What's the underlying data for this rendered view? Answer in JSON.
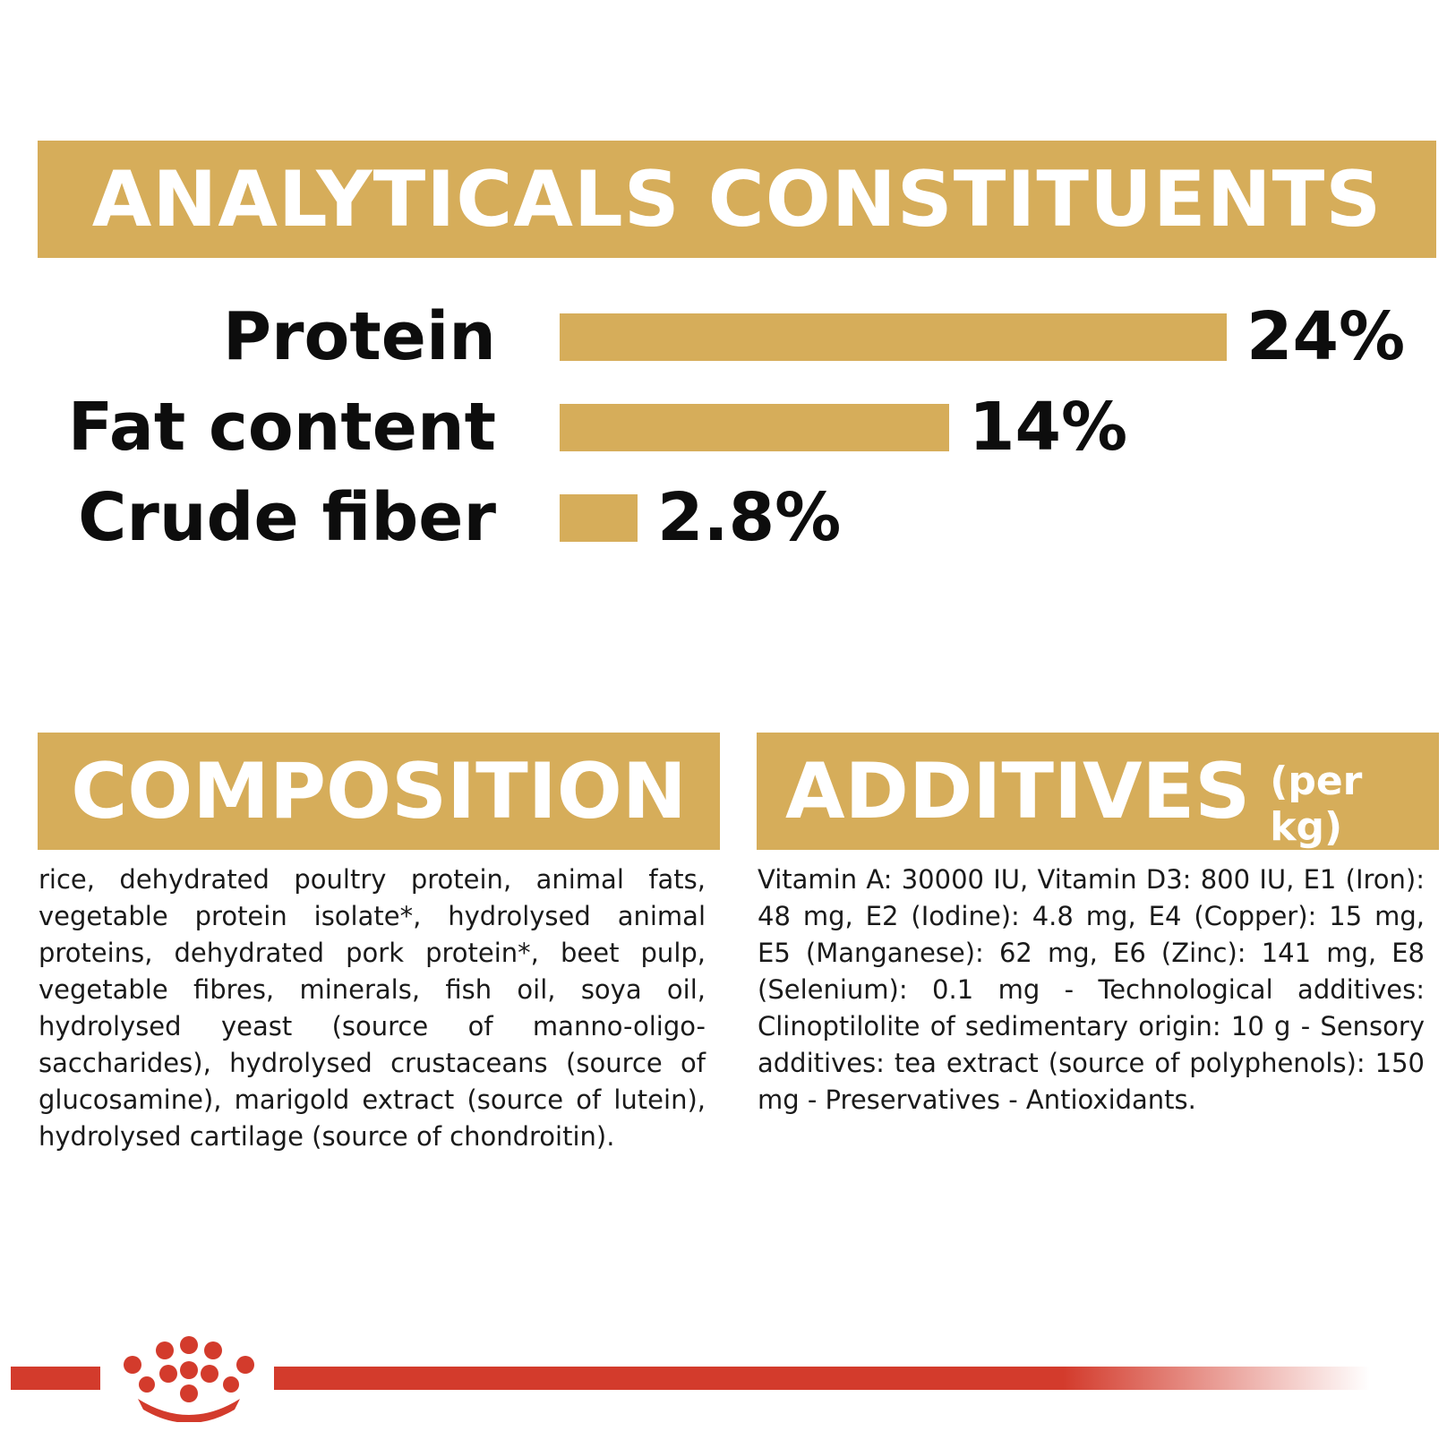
{
  "analytical": {
    "title": "ANALYTICALS CONSTITUENTS",
    "rows": [
      {
        "label": "Protein",
        "value": "24%",
        "percent": 24
      },
      {
        "label": "Fat content",
        "value": "14%",
        "percent": 14
      },
      {
        "label": "Crude fiber",
        "value": "2.8%",
        "percent": 2.8
      }
    ]
  },
  "composition": {
    "title": "COMPOSITION",
    "text": "rice, dehydrated poultry protein, animal fats, vegetable protein isolate*, hydrolysed animal proteins, dehydrated pork protein*, beet pulp, vegetable fibres, minerals, fish oil, soya oil, hydrolysed yeast (source of manno-oligo-saccharides), hydrolysed crustaceans (source of glucosamine), marigold extract (source of lutein), hydrolysed cartilage (source of chondroitin)."
  },
  "additives": {
    "title": "ADDITIVES",
    "subtitle": "(per kg)",
    "text": "Vitamin A: 30000 IU, Vitamin D3: 800 IU, E1 (Iron): 48 mg, E2 (Iodine): 4.8 mg, E4 (Copper): 15 mg, E5 (Manganese): 62 mg, E6 (Zinc): 141 mg, E8 (Selenium): 0.1 mg - Technological additives: Clinoptilolite of sedimentary origin: 10 g - Sensory additives: tea extract (source of polyphenols): 150 mg - Preservatives - Antioxidants."
  },
  "colors": {
    "accent": "#d6ad5a",
    "brand_red": "#d33b2c",
    "text": "#111111"
  },
  "footer": {
    "logo_icon": "royal-crown-icon"
  }
}
